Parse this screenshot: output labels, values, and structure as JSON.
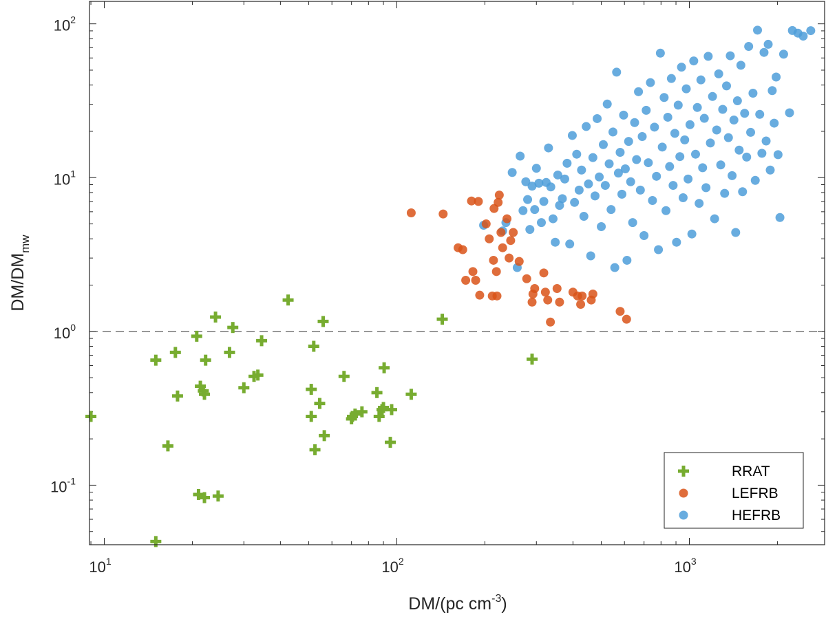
{
  "chart_data": {
    "type": "scatter",
    "xscale": "log",
    "yscale": "log",
    "xlabel_main": "DM/(pc cm",
    "xlabel_sup": "-3",
    "xlabel_close": ")",
    "ylabel_main": "DM/DM",
    "ylabel_sub": "mw",
    "xlim": [
      8.9,
      2900
    ],
    "ylim": [
      0.041,
      140
    ],
    "reference_line_y": 1.0,
    "x_ticks": [
      {
        "value": 10,
        "base": "10",
        "exp": "1"
      },
      {
        "value": 100,
        "base": "10",
        "exp": "2"
      },
      {
        "value": 1000,
        "base": "10",
        "exp": "3"
      }
    ],
    "y_ticks": [
      {
        "value": 0.1,
        "base": "10",
        "exp": "-1"
      },
      {
        "value": 1,
        "base": "10",
        "exp": "0"
      },
      {
        "value": 10,
        "base": "10",
        "exp": "1"
      },
      {
        "value": 100,
        "base": "10",
        "exp": "2"
      }
    ],
    "legend_position": "bottom-right",
    "series": [
      {
        "name": "RRAT",
        "marker": "plus",
        "color": "#77ac30",
        "points": [
          [
            9,
            0.28
          ],
          [
            15,
            0.65
          ],
          [
            15,
            0.043
          ],
          [
            16.5,
            0.18
          ],
          [
            17.5,
            0.73
          ],
          [
            17.8,
            0.38
          ],
          [
            20.7,
            0.93
          ],
          [
            21,
            0.087
          ],
          [
            21.3,
            0.44
          ],
          [
            21.8,
            0.41
          ],
          [
            22,
            0.083
          ],
          [
            22,
            0.39
          ],
          [
            22.2,
            0.65
          ],
          [
            24,
            1.24
          ],
          [
            24.5,
            0.085
          ],
          [
            26.8,
            0.73
          ],
          [
            27.5,
            1.06
          ],
          [
            30,
            0.43
          ],
          [
            32.5,
            0.51
          ],
          [
            33.5,
            0.52
          ],
          [
            34.5,
            0.87
          ],
          [
            42.5,
            1.6
          ],
          [
            51,
            0.42
          ],
          [
            51,
            0.28
          ],
          [
            52,
            0.8
          ],
          [
            52.5,
            0.17
          ],
          [
            54.5,
            0.34
          ],
          [
            56,
            1.16
          ],
          [
            56.5,
            0.21
          ],
          [
            66,
            0.51
          ],
          [
            70,
            0.27
          ],
          [
            70.5,
            0.28
          ],
          [
            72,
            0.29
          ],
          [
            76,
            0.3
          ],
          [
            85.5,
            0.4
          ],
          [
            87,
            0.28
          ],
          [
            89,
            0.31
          ],
          [
            90,
            0.32
          ],
          [
            90.5,
            0.58
          ],
          [
            95,
            0.19
          ],
          [
            96,
            0.31
          ],
          [
            112,
            0.39
          ],
          [
            143,
            1.2
          ],
          [
            290,
            0.66
          ]
        ]
      },
      {
        "name": "LEFRB",
        "marker": "circle",
        "color": "#d95319",
        "points": [
          [
            112,
            5.9
          ],
          [
            144,
            5.8
          ],
          [
            162,
            3.5
          ],
          [
            168,
            3.4
          ],
          [
            172,
            2.15
          ],
          [
            180,
            7.05
          ],
          [
            182,
            2.45
          ],
          [
            186,
            2.15
          ],
          [
            190,
            7
          ],
          [
            192,
            1.72
          ],
          [
            202,
            5
          ],
          [
            207,
            4
          ],
          [
            212,
            1.7
          ],
          [
            214,
            2.9
          ],
          [
            215,
            6.3
          ],
          [
            219,
            2.45
          ],
          [
            220,
            1.7
          ],
          [
            222,
            6.9
          ],
          [
            224,
            7.7
          ],
          [
            227,
            4.4
          ],
          [
            230,
            3.5
          ],
          [
            238,
            5.4
          ],
          [
            242,
            3
          ],
          [
            245,
            3.9
          ],
          [
            250,
            4.4
          ],
          [
            262,
            2.85
          ],
          [
            278,
            2.2
          ],
          [
            290,
            1.55
          ],
          [
            292,
            1.75
          ],
          [
            296,
            1.9
          ],
          [
            318,
            2.4
          ],
          [
            322,
            1.8
          ],
          [
            328,
            1.6
          ],
          [
            335,
            1.15
          ],
          [
            353,
            1.9
          ],
          [
            360,
            1.55
          ],
          [
            400,
            1.8
          ],
          [
            415,
            1.7
          ],
          [
            425,
            1.5
          ],
          [
            430,
            1.7
          ],
          [
            462,
            1.6
          ],
          [
            468,
            1.75
          ],
          [
            580,
            1.35
          ],
          [
            610,
            1.2
          ]
        ]
      },
      {
        "name": "HEFRB",
        "marker": "circle",
        "color": "#4d9ed9",
        "points": [
          [
            198,
            4.9
          ],
          [
            230,
            4.5
          ],
          [
            236,
            5.1
          ],
          [
            248,
            10.8
          ],
          [
            258,
            2.6
          ],
          [
            264,
            13.8
          ],
          [
            270,
            6.1
          ],
          [
            276,
            9.4
          ],
          [
            280,
            7.2
          ],
          [
            285,
            4.6
          ],
          [
            290,
            8.8
          ],
          [
            296,
            6.2
          ],
          [
            300,
            11.5
          ],
          [
            306,
            9.2
          ],
          [
            312,
            5.1
          ],
          [
            318,
            7
          ],
          [
            324,
            9.3
          ],
          [
            330,
            15.6
          ],
          [
            336,
            8.7
          ],
          [
            342,
            5.4
          ],
          [
            348,
            3.8
          ],
          [
            355,
            10.4
          ],
          [
            360,
            6.6
          ],
          [
            368,
            7.3
          ],
          [
            375,
            9.8
          ],
          [
            382,
            12.4
          ],
          [
            390,
            3.7
          ],
          [
            398,
            18.8
          ],
          [
            405,
            6.9
          ],
          [
            412,
            14.2
          ],
          [
            420,
            8.3
          ],
          [
            428,
            11.2
          ],
          [
            436,
            5.6
          ],
          [
            444,
            21.5
          ],
          [
            452,
            9.1
          ],
          [
            460,
            3.1
          ],
          [
            468,
            13.5
          ],
          [
            476,
            7.6
          ],
          [
            484,
            24.2
          ],
          [
            492,
            10.1
          ],
          [
            500,
            4.8
          ],
          [
            508,
            16.4
          ],
          [
            516,
            8.9
          ],
          [
            524,
            30.1
          ],
          [
            532,
            12.3
          ],
          [
            540,
            6.2
          ],
          [
            548,
            19.8
          ],
          [
            556,
            2.6
          ],
          [
            564,
            48.5
          ],
          [
            572,
            10.7
          ],
          [
            580,
            14.6
          ],
          [
            588,
            7.8
          ],
          [
            596,
            25.5
          ],
          [
            604,
            11.4
          ],
          [
            612,
            2.9
          ],
          [
            620,
            17.2
          ],
          [
            630,
            9.4
          ],
          [
            640,
            5.1
          ],
          [
            650,
            22.8
          ],
          [
            660,
            13.1
          ],
          [
            670,
            36.2
          ],
          [
            680,
            8.3
          ],
          [
            690,
            18.5
          ],
          [
            700,
            4.2
          ],
          [
            712,
            27.4
          ],
          [
            724,
            12.5
          ],
          [
            736,
            41.5
          ],
          [
            748,
            7.1
          ],
          [
            760,
            21.3
          ],
          [
            772,
            10.2
          ],
          [
            784,
            3.4
          ],
          [
            796,
            64.5
          ],
          [
            808,
            15.8
          ],
          [
            820,
            33.2
          ],
          [
            832,
            6.1
          ],
          [
            844,
            24.7
          ],
          [
            856,
            11.8
          ],
          [
            868,
            44.1
          ],
          [
            880,
            8.9
          ],
          [
            892,
            19.4
          ],
          [
            904,
            3.8
          ],
          [
            916,
            29.6
          ],
          [
            928,
            13.7
          ],
          [
            940,
            52.3
          ],
          [
            952,
            7.4
          ],
          [
            964,
            17.6
          ],
          [
            976,
            37.8
          ],
          [
            990,
            9.8
          ],
          [
            1005,
            22.1
          ],
          [
            1020,
            4.3
          ],
          [
            1035,
            57.4
          ],
          [
            1050,
            14.2
          ],
          [
            1065,
            28.6
          ],
          [
            1080,
            6.8
          ],
          [
            1095,
            43.2
          ],
          [
            1110,
            11.6
          ],
          [
            1125,
            24.3
          ],
          [
            1140,
            8.6
          ],
          [
            1160,
            61.5
          ],
          [
            1180,
            16.8
          ],
          [
            1200,
            33.7
          ],
          [
            1220,
            5.4
          ],
          [
            1240,
            20.4
          ],
          [
            1260,
            47.3
          ],
          [
            1280,
            12.1
          ],
          [
            1300,
            27.8
          ],
          [
            1320,
            7.9
          ],
          [
            1340,
            39.5
          ],
          [
            1360,
            18.2
          ],
          [
            1380,
            62
          ],
          [
            1400,
            10.3
          ],
          [
            1420,
            23.7
          ],
          [
            1440,
            4.4
          ],
          [
            1460,
            31.6
          ],
          [
            1480,
            15.1
          ],
          [
            1500,
            53.8
          ],
          [
            1520,
            8.1
          ],
          [
            1545,
            26.2
          ],
          [
            1570,
            13.6
          ],
          [
            1595,
            71.3
          ],
          [
            1620,
            19.7
          ],
          [
            1650,
            35.4
          ],
          [
            1680,
            9.6
          ],
          [
            1710,
            91
          ],
          [
            1740,
            25.8
          ],
          [
            1770,
            14.4
          ],
          [
            1800,
            65.2
          ],
          [
            1830,
            17.3
          ],
          [
            1860,
            73.6
          ],
          [
            1890,
            11.2
          ],
          [
            1920,
            36.8
          ],
          [
            1950,
            22.6
          ],
          [
            1980,
            45.1
          ],
          [
            2010,
            14.1
          ],
          [
            2040,
            5.5
          ],
          [
            2100,
            63.5
          ],
          [
            2200,
            26.4
          ],
          [
            2250,
            90.5
          ],
          [
            2350,
            87
          ],
          [
            2450,
            83.2
          ],
          [
            2600,
            90.3
          ]
        ]
      }
    ]
  }
}
